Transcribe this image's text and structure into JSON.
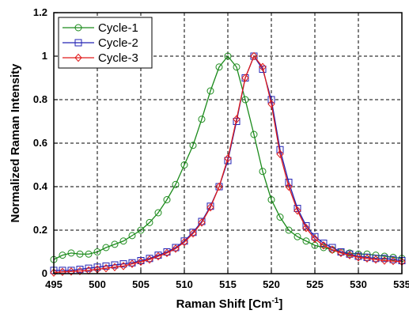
{
  "chart_data": {
    "type": "line",
    "xlabel": "Raman Shift [Cm",
    "xlabel_sup": "-1",
    "xlabel_end": "]",
    "ylabel": "Normalized Raman Intensity",
    "xlim": [
      495,
      535
    ],
    "ylim": [
      0,
      1.2
    ],
    "xticks": [
      "495",
      "500",
      "505",
      "510",
      "515",
      "520",
      "525",
      "530",
      "535"
    ],
    "yticks": [
      "0",
      "0.2",
      "0.4",
      "0.6",
      "0.8",
      "1",
      "1.2"
    ],
    "grid": true,
    "grid_style": "dashed",
    "legend_position": "top-left",
    "series": [
      {
        "name": "Cycle-1",
        "color": "#1a8a1a",
        "marker": "circle",
        "x": [
          495,
          496,
          497,
          498,
          499,
          500,
          501,
          502,
          503,
          504,
          505,
          506,
          507,
          508,
          509,
          510,
          511,
          512,
          513,
          514,
          515,
          516,
          517,
          518,
          519,
          520,
          521,
          522,
          523,
          524,
          525,
          526,
          527,
          528,
          529,
          530,
          531,
          532,
          533,
          534,
          535
        ],
        "y": [
          0.065,
          0.085,
          0.095,
          0.09,
          0.09,
          0.1,
          0.12,
          0.135,
          0.15,
          0.175,
          0.2,
          0.235,
          0.28,
          0.34,
          0.41,
          0.5,
          0.59,
          0.71,
          0.84,
          0.95,
          1.0,
          0.95,
          0.8,
          0.64,
          0.47,
          0.34,
          0.26,
          0.2,
          0.17,
          0.15,
          0.13,
          0.12,
          0.11,
          0.1,
          0.095,
          0.09,
          0.09,
          0.085,
          0.08,
          0.075,
          0.07
        ]
      },
      {
        "name": "Cycle-2",
        "color": "#2323b4",
        "marker": "square",
        "x": [
          495,
          496,
          497,
          498,
          499,
          500,
          501,
          502,
          503,
          504,
          505,
          506,
          507,
          508,
          509,
          510,
          511,
          512,
          513,
          514,
          515,
          516,
          517,
          518,
          519,
          520,
          521,
          522,
          523,
          524,
          525,
          526,
          527,
          528,
          529,
          530,
          531,
          532,
          533,
          534,
          535
        ],
        "y": [
          0.015,
          0.015,
          0.015,
          0.02,
          0.025,
          0.03,
          0.035,
          0.04,
          0.045,
          0.05,
          0.06,
          0.07,
          0.085,
          0.1,
          0.12,
          0.15,
          0.19,
          0.24,
          0.31,
          0.4,
          0.52,
          0.7,
          0.9,
          1.0,
          0.94,
          0.8,
          0.57,
          0.42,
          0.3,
          0.22,
          0.17,
          0.14,
          0.12,
          0.1,
          0.09,
          0.08,
          0.075,
          0.07,
          0.07,
          0.065,
          0.06
        ]
      },
      {
        "name": "Cycle-3",
        "color": "#e01a1a",
        "marker": "diamond",
        "x": [
          495,
          496,
          497,
          498,
          499,
          500,
          501,
          502,
          503,
          504,
          505,
          506,
          507,
          508,
          509,
          510,
          511,
          512,
          513,
          514,
          515,
          516,
          517,
          518,
          519,
          520,
          521,
          522,
          523,
          524,
          525,
          526,
          527,
          528,
          529,
          530,
          531,
          532,
          533,
          534,
          535
        ],
        "y": [
          0.005,
          0.008,
          0.01,
          0.012,
          0.015,
          0.02,
          0.025,
          0.03,
          0.035,
          0.045,
          0.055,
          0.065,
          0.08,
          0.095,
          0.115,
          0.145,
          0.185,
          0.235,
          0.305,
          0.4,
          0.53,
          0.71,
          0.9,
          1.0,
          0.95,
          0.78,
          0.55,
          0.4,
          0.29,
          0.21,
          0.16,
          0.13,
          0.11,
          0.095,
          0.085,
          0.075,
          0.07,
          0.065,
          0.06,
          0.058,
          0.055
        ]
      }
    ]
  }
}
